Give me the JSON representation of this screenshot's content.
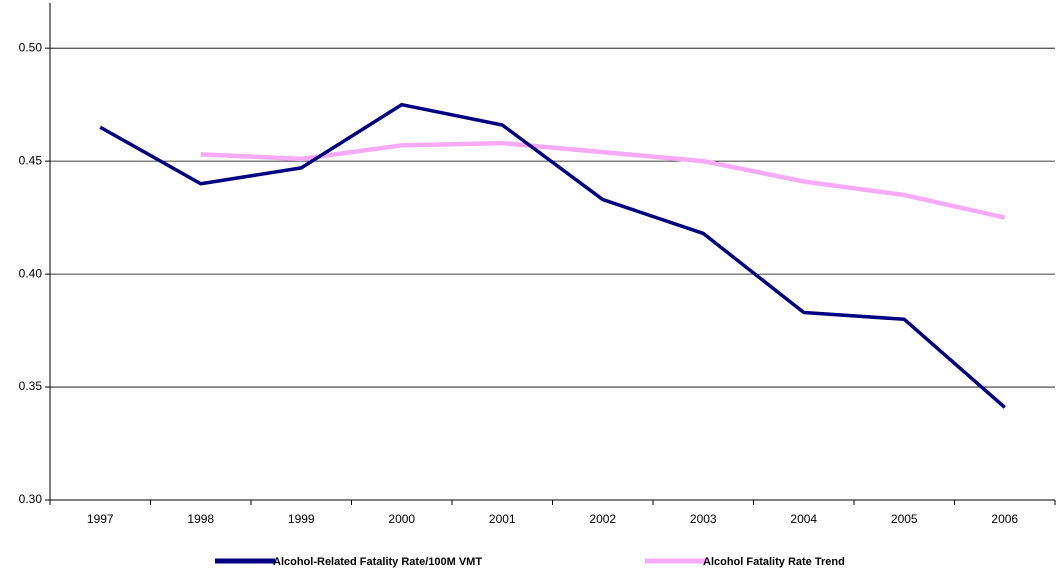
{
  "chart_data": {
    "type": "line",
    "categories": [
      "1997",
      "1998",
      "1999",
      "2000",
      "2001",
      "2002",
      "2003",
      "2004",
      "2005",
      "2006"
    ],
    "series": [
      {
        "name": "Alcohol-Related Fatality Rate/100M VMT",
        "color": "#000080",
        "values": [
          0.465,
          0.44,
          0.447,
          0.475,
          0.466,
          0.433,
          0.418,
          0.383,
          0.38,
          0.341
        ]
      },
      {
        "name": "Alcohol Fatality Rate Trend",
        "color": "#f7aaf7",
        "values": [
          null,
          0.453,
          0.451,
          0.457,
          0.458,
          0.454,
          0.45,
          0.441,
          0.435,
          0.425
        ]
      }
    ],
    "ylim": [
      0.3,
      0.52
    ],
    "yticks": [
      {
        "value": 0.3,
        "label": "0.30"
      },
      {
        "value": 0.35,
        "label": "0.35"
      },
      {
        "value": 0.4,
        "label": "0.40"
      },
      {
        "value": 0.45,
        "label": "0.45"
      },
      {
        "value": 0.5,
        "label": "0.50"
      }
    ],
    "grid": true,
    "legend": "bottom"
  }
}
